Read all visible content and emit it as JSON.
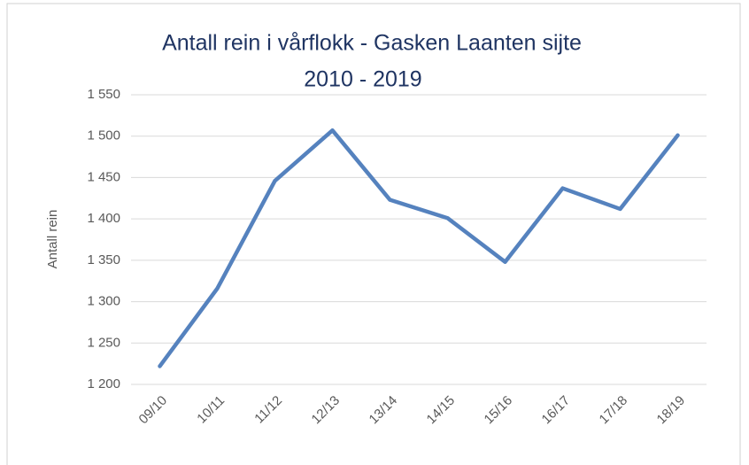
{
  "chart_data": {
    "type": "line",
    "title": [
      "Antall rein i vårflokk - Gasken Laanten sijte",
      "2010 - 2019"
    ],
    "y_label": "Antall rein",
    "categories": [
      "09/10",
      "10/11",
      "11/12",
      "12/13",
      "13/14",
      "14/15",
      "15/16",
      "16/17",
      "17/18",
      "18/19"
    ],
    "series": [
      {
        "name": "Antall rein",
        "color": "#5582be",
        "values": [
          1222,
          1316,
          1446,
          1507,
          1423,
          1401,
          1348,
          1437,
          1412,
          1501
        ]
      }
    ],
    "ylim": [
      1200,
      1550
    ],
    "yticks": [
      {
        "value": 1200,
        "label": "1 200"
      },
      {
        "value": 1250,
        "label": "1 250"
      },
      {
        "value": 1300,
        "label": "1 300"
      },
      {
        "value": 1350,
        "label": "1 350"
      },
      {
        "value": 1400,
        "label": "1 400"
      },
      {
        "value": 1450,
        "label": "1 450"
      },
      {
        "value": 1500,
        "label": "1 500"
      },
      {
        "value": 1550,
        "label": "1 550"
      }
    ],
    "grid": true
  }
}
